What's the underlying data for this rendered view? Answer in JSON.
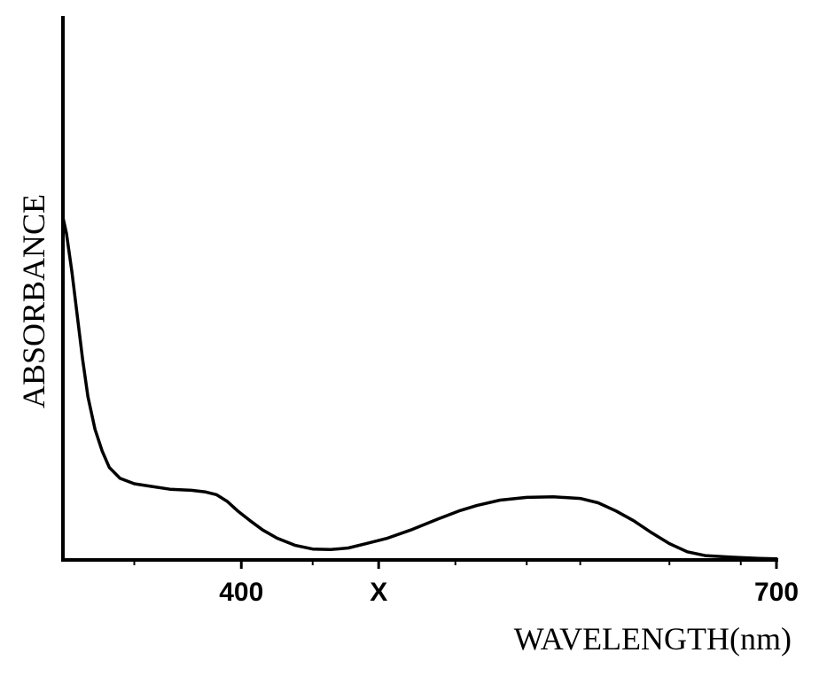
{
  "chart_data": {
    "type": "line",
    "title": "",
    "xlabel": "WAVELENGTH(nm)",
    "ylabel": "ABSORBANCE",
    "xlim": [
      300,
      700
    ],
    "ylim": [
      0,
      1.0
    ],
    "grid": false,
    "legend": "none",
    "x_ticks": [
      {
        "value": 400,
        "label": "400"
      },
      {
        "value": 477,
        "label": "X"
      },
      {
        "value": 700,
        "label": "700"
      }
    ],
    "x_minor_ticks": [
      340,
      440,
      520,
      560,
      590,
      640,
      680
    ],
    "series": [
      {
        "values": [
          [
            300,
            0.63
          ],
          [
            302,
            0.6
          ],
          [
            305,
            0.53
          ],
          [
            308,
            0.45
          ],
          [
            311,
            0.37
          ],
          [
            314,
            0.3
          ],
          [
            318,
            0.24
          ],
          [
            322,
            0.2
          ],
          [
            326,
            0.17
          ],
          [
            332,
            0.15
          ],
          [
            340,
            0.14
          ],
          [
            350,
            0.135
          ],
          [
            360,
            0.13
          ],
          [
            372,
            0.128
          ],
          [
            380,
            0.125
          ],
          [
            386,
            0.12
          ],
          [
            392,
            0.108
          ],
          [
            398,
            0.09
          ],
          [
            405,
            0.072
          ],
          [
            412,
            0.055
          ],
          [
            420,
            0.04
          ],
          [
            430,
            0.027
          ],
          [
            440,
            0.02
          ],
          [
            450,
            0.019
          ],
          [
            460,
            0.022
          ],
          [
            470,
            0.03
          ],
          [
            482,
            0.04
          ],
          [
            495,
            0.055
          ],
          [
            510,
            0.075
          ],
          [
            522,
            0.09
          ],
          [
            532,
            0.1
          ],
          [
            545,
            0.11
          ],
          [
            560,
            0.115
          ],
          [
            575,
            0.116
          ],
          [
            590,
            0.113
          ],
          [
            600,
            0.105
          ],
          [
            610,
            0.09
          ],
          [
            620,
            0.072
          ],
          [
            630,
            0.05
          ],
          [
            640,
            0.03
          ],
          [
            650,
            0.015
          ],
          [
            660,
            0.008
          ],
          [
            675,
            0.005
          ],
          [
            690,
            0.003
          ],
          [
            700,
            0.002
          ]
        ]
      }
    ]
  }
}
